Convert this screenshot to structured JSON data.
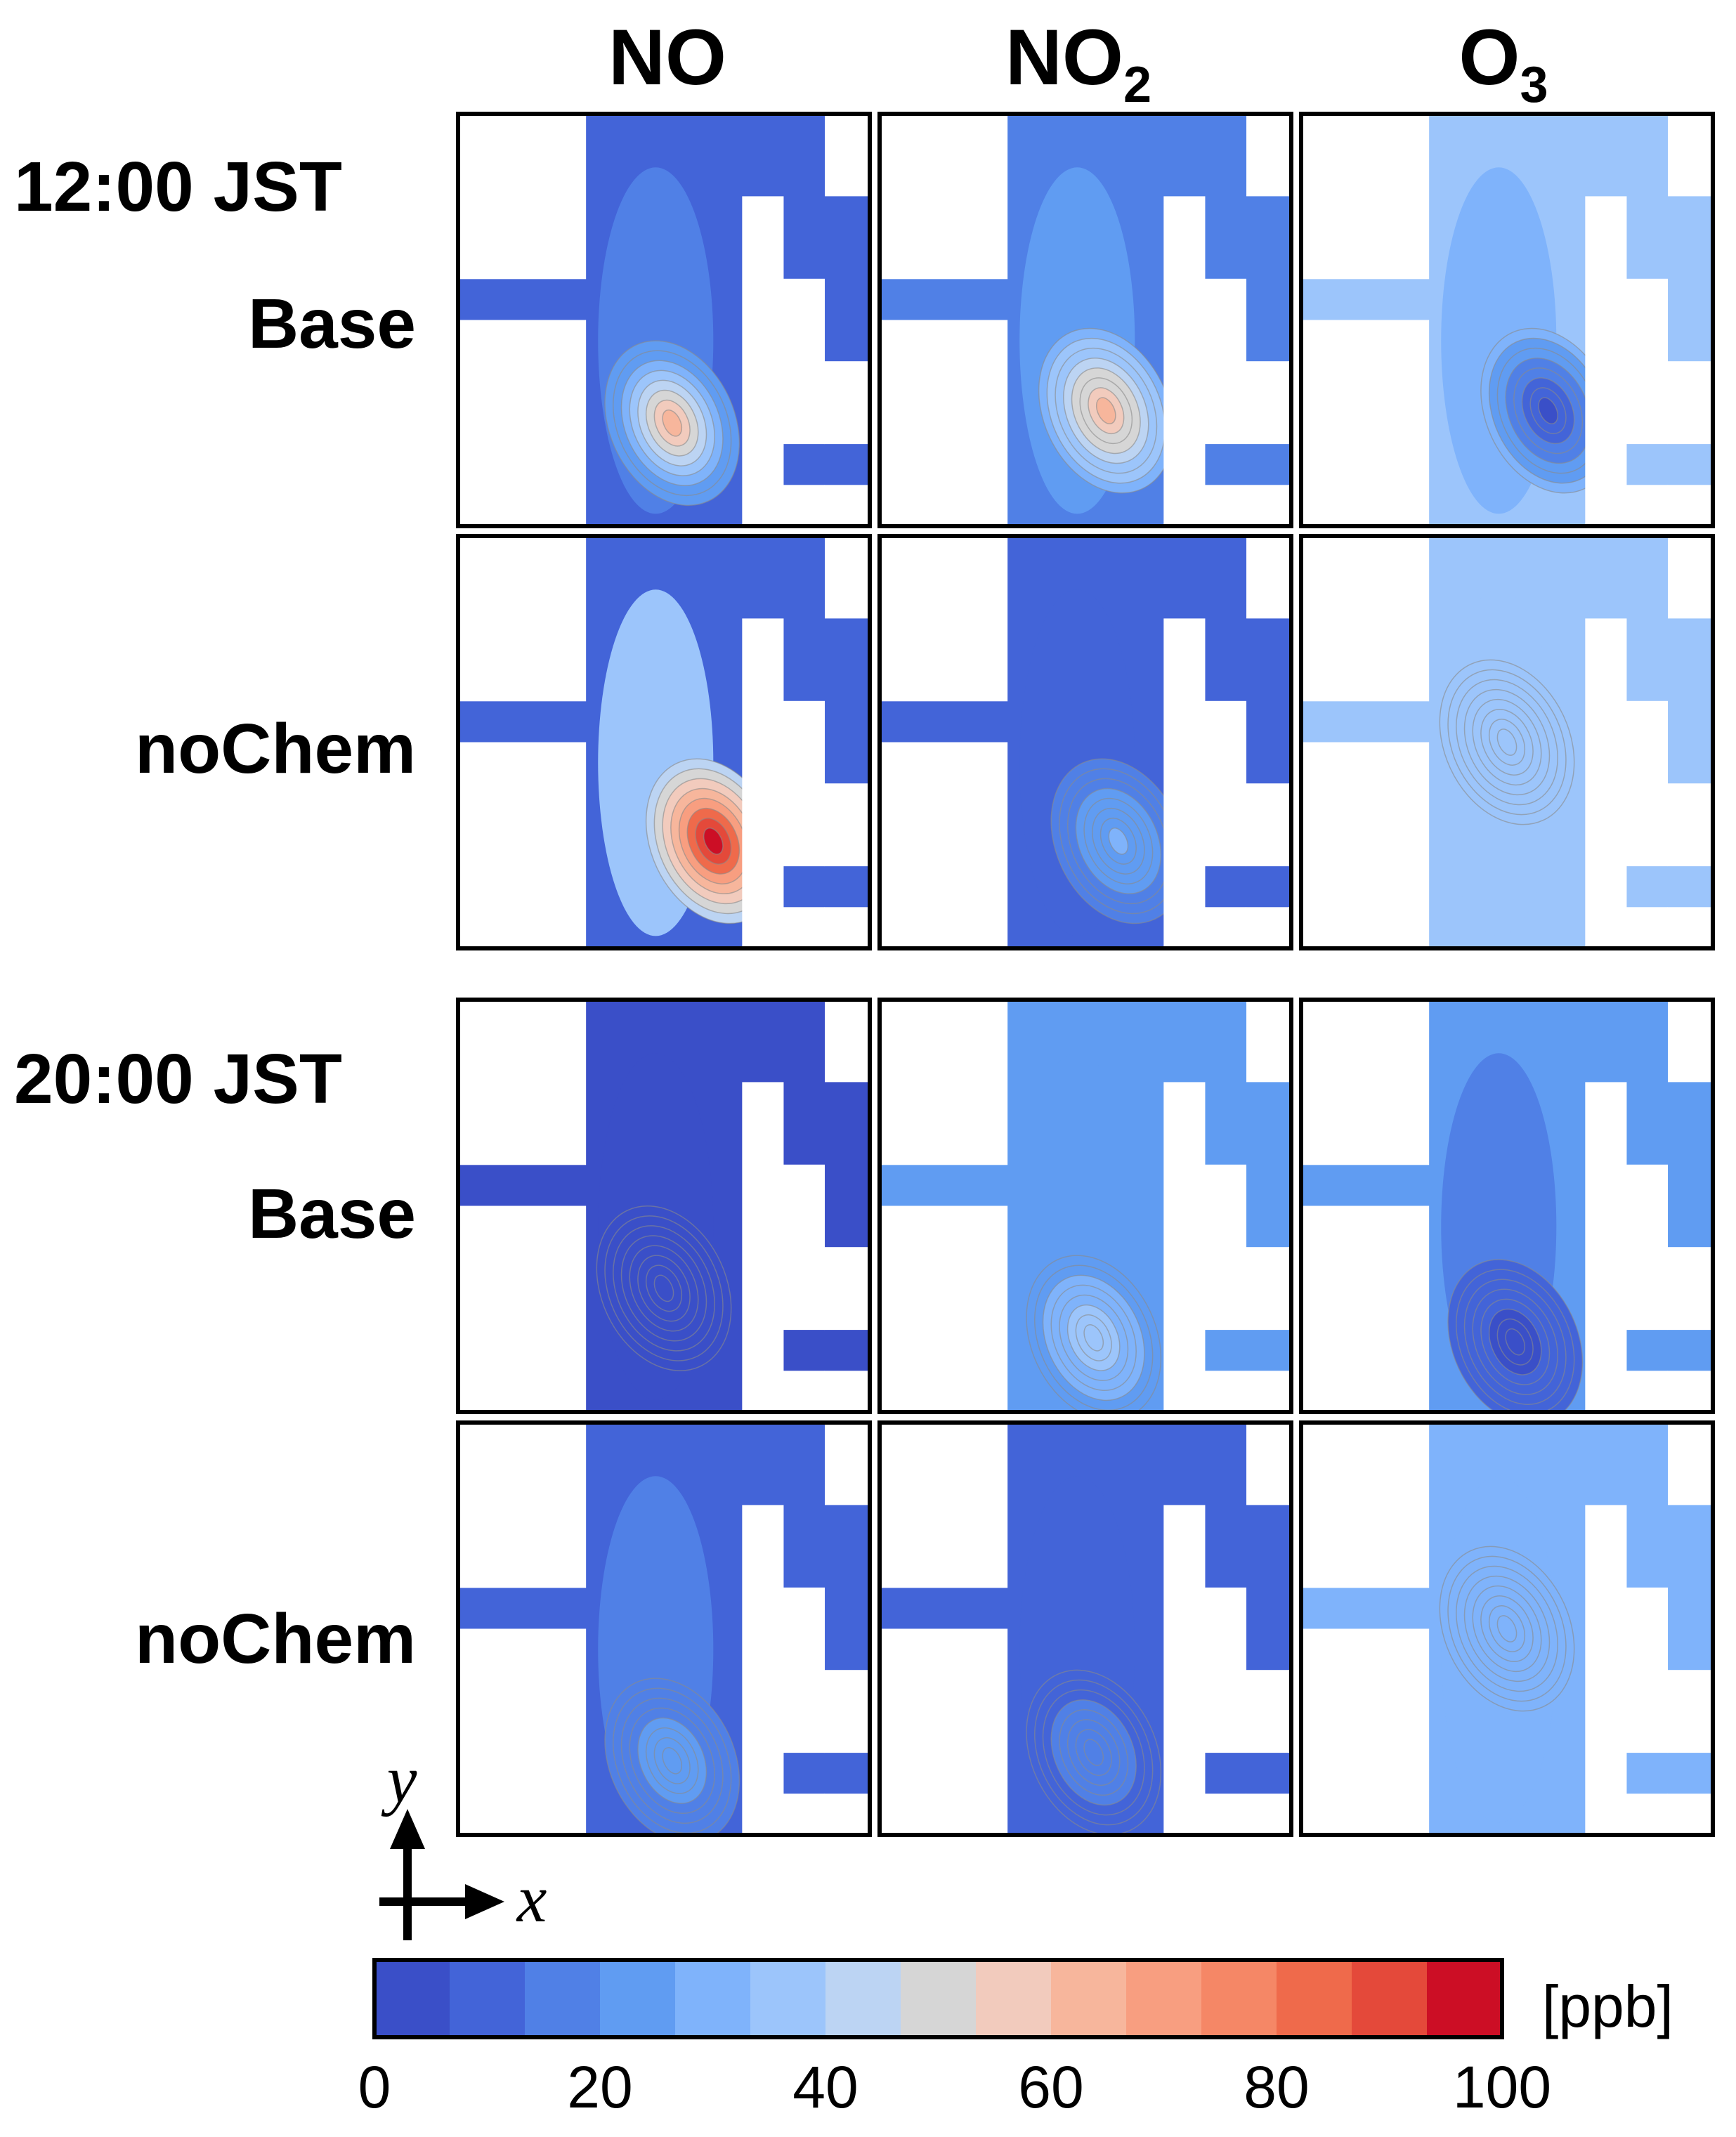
{
  "chart_data": {
    "type": "heatmap",
    "columns": [
      {
        "base": "NO",
        "sub": ""
      },
      {
        "base": "NO",
        "sub": "2"
      },
      {
        "base": "O",
        "sub": "3"
      }
    ],
    "time_labels": [
      "12:00 JST",
      "20:00 JST"
    ],
    "rows": [
      {
        "time": "12:00 JST",
        "run": "Base"
      },
      {
        "time": "12:00 JST",
        "run": "noChem"
      },
      {
        "time": "20:00 JST",
        "run": "Base"
      },
      {
        "time": "20:00 JST",
        "run": "noChem"
      }
    ],
    "axes": {
      "x_label": "x",
      "y_label": "y"
    },
    "colorbar": {
      "unit": "[ppb]",
      "range": [
        0,
        100
      ],
      "ticks": [
        0,
        20,
        40,
        60,
        80,
        100
      ],
      "colors": [
        "#3a4fc8",
        "#4364d8",
        "#5080e6",
        "#609cf2",
        "#7fb3fb",
        "#9cc5fb",
        "#bcd4f3",
        "#d6d6d6",
        "#f2cbbd",
        "#f7b69c",
        "#f89e80",
        "#f58766",
        "#ef6a4b",
        "#e4493a",
        "#cc0e25"
      ]
    },
    "panels": [
      {
        "row": 0,
        "col": 0,
        "background": 10,
        "hotspot": {
          "x": 0.52,
          "y": 0.75,
          "peak": 62
        },
        "plume": 14
      },
      {
        "row": 0,
        "col": 1,
        "background": 16,
        "hotspot": {
          "x": 0.55,
          "y": 0.72,
          "peak": 60
        },
        "plume": 26
      },
      {
        "row": 0,
        "col": 2,
        "background": 38,
        "hotspot": {
          "x": 0.6,
          "y": 0.72,
          "peak": 4
        },
        "plume": 30
      },
      {
        "row": 1,
        "col": 0,
        "background": 13,
        "hotspot": {
          "x": 0.62,
          "y": 0.74,
          "peak": 96
        },
        "plume": 34
      },
      {
        "row": 1,
        "col": 1,
        "background": 11,
        "hotspot": {
          "x": 0.58,
          "y": 0.74,
          "peak": 28
        },
        "plume": 12
      },
      {
        "row": 1,
        "col": 2,
        "background": 39,
        "hotspot": {
          "x": 0.5,
          "y": 0.5,
          "peak": 39
        },
        "plume": 39
      },
      {
        "row": 2,
        "col": 0,
        "background": 3,
        "hotspot": {
          "x": 0.5,
          "y": 0.7,
          "peak": 3
        },
        "plume": 3
      },
      {
        "row": 2,
        "col": 1,
        "background": 24,
        "hotspot": {
          "x": 0.52,
          "y": 0.82,
          "peak": 38
        },
        "plume": 20
      },
      {
        "row": 2,
        "col": 2,
        "background": 20,
        "hotspot": {
          "x": 0.52,
          "y": 0.83,
          "peak": 4
        },
        "plume": 14
      },
      {
        "row": 3,
        "col": 0,
        "background": 13,
        "hotspot": {
          "x": 0.52,
          "y": 0.82,
          "peak": 22
        },
        "plume": 17
      },
      {
        "row": 3,
        "col": 1,
        "background": 10,
        "hotspot": {
          "x": 0.52,
          "y": 0.8,
          "peak": 17
        },
        "plume": 10
      },
      {
        "row": 3,
        "col": 2,
        "background": 27,
        "hotspot": {
          "x": 0.5,
          "y": 0.5,
          "peak": 27
        },
        "plume": 27
      }
    ]
  }
}
